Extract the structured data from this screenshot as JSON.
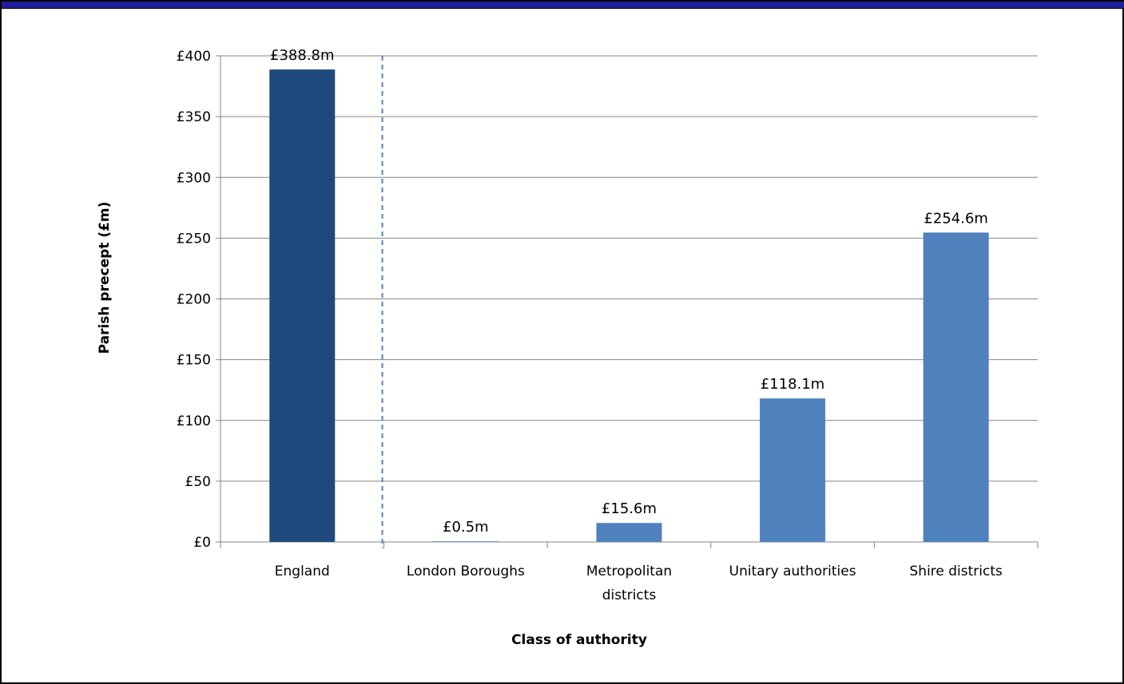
{
  "chart_data": {
    "type": "bar",
    "categories": [
      [
        "England"
      ],
      [
        "London Boroughs"
      ],
      [
        "Metropolitan",
        "districts"
      ],
      [
        "Unitary authorities"
      ],
      [
        "Shire districts"
      ]
    ],
    "values": [
      388.8,
      0.5,
      15.6,
      118.1,
      254.6
    ],
    "data_labels": [
      "£388.8m",
      "£0.5m",
      "£15.6m",
      "£118.1m",
      "£254.6m"
    ],
    "bar_colors": [
      "#1f497d",
      "#4f81bd",
      "#4f81bd",
      "#4f81bd",
      "#4f81bd"
    ],
    "yticks": [
      0,
      50,
      100,
      150,
      200,
      250,
      300,
      350,
      400
    ],
    "ytick_labels": [
      "£0",
      "£50",
      "£100",
      "£150",
      "£200",
      "£250",
      "£300",
      "£350",
      "£400"
    ],
    "ylim": [
      0,
      400
    ],
    "xlabel": "Class of authority",
    "ylabel": "Parish precept (£m)",
    "grid": true,
    "separator": {
      "style": "dashed",
      "color": "#4f81bd"
    },
    "colors": {
      "gridline": "#868686",
      "axis": "#868686",
      "top_band": "#1f1f9c"
    }
  }
}
